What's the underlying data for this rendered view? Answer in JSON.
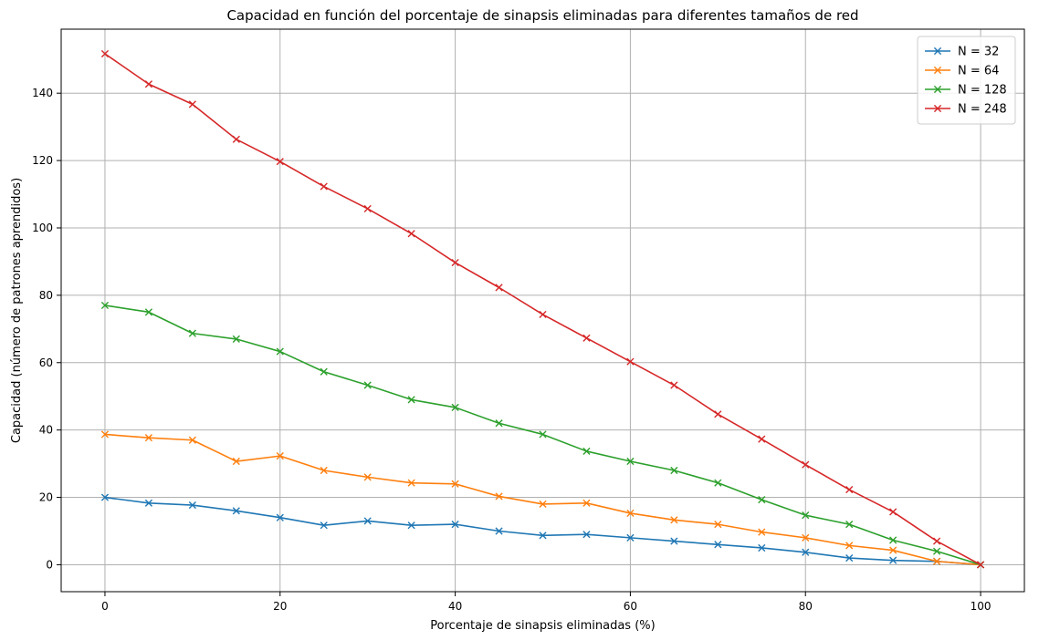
{
  "chart_data": {
    "type": "line",
    "title": "Capacidad en función del porcentaje de sinapsis eliminadas para diferentes tamaños de red",
    "xlabel": "Porcentaje de sinapsis eliminadas (%)",
    "ylabel": "Capacidad (número de patrones aprendidos)",
    "xlim": [
      -5,
      105
    ],
    "ylim": [
      -8,
      159
    ],
    "xticks": [
      0,
      20,
      40,
      60,
      80,
      100
    ],
    "yticks": [
      0,
      20,
      40,
      60,
      80,
      100,
      120,
      140
    ],
    "grid": true,
    "legend_position": "top-right",
    "marker": "x",
    "x": [
      0,
      5,
      10,
      15,
      20,
      25,
      30,
      35,
      40,
      45,
      50,
      55,
      60,
      65,
      70,
      75,
      80,
      85,
      90,
      95,
      100
    ],
    "series": [
      {
        "name": "N = 32",
        "color": "#1f77b4",
        "values": [
          20,
          18.3,
          17.7,
          16,
          14,
          11.7,
          13,
          11.7,
          12,
          10,
          8.7,
          9,
          8,
          7,
          6,
          5,
          3.7,
          2,
          1.3,
          1,
          0
        ]
      },
      {
        "name": "N = 64",
        "color": "#ff7f0e",
        "values": [
          38.7,
          37.7,
          37,
          30.7,
          32.3,
          28,
          26,
          24.3,
          24,
          20.3,
          18,
          18.3,
          15.3,
          13.3,
          12,
          9.7,
          8,
          5.7,
          4.3,
          1,
          0
        ]
      },
      {
        "name": "N = 128",
        "color": "#2ca02c",
        "values": [
          77,
          75,
          68.7,
          67,
          63.3,
          57.3,
          53.3,
          49,
          46.7,
          42,
          38.7,
          33.7,
          30.7,
          28,
          24.3,
          19.3,
          14.7,
          12,
          7.3,
          4,
          0
        ]
      },
      {
        "name": "N = 248",
        "color": "#d62728",
        "values": [
          151.7,
          142.7,
          136.7,
          126.3,
          119.7,
          112.3,
          105.7,
          98.3,
          89.7,
          82.3,
          74.3,
          67.3,
          60.3,
          53.3,
          44.7,
          37.3,
          29.7,
          22.3,
          15.7,
          7,
          0
        ]
      }
    ]
  }
}
